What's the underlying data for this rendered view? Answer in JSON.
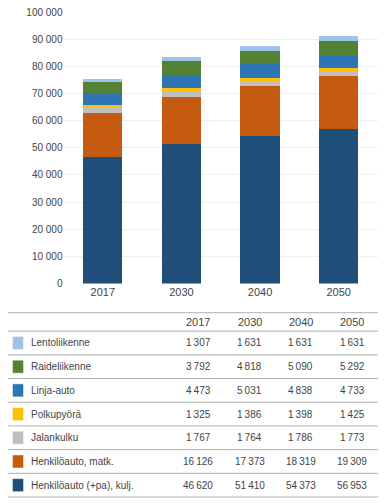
{
  "chart_data": {
    "type": "bar",
    "stacked": true,
    "categories": [
      "2017",
      "2030",
      "2040",
      "2050"
    ],
    "series": [
      {
        "name": "Henkilöauto (+pa), kulj.",
        "color": "#1F4E79",
        "values": [
          46620,
          51410,
          54373,
          56953
        ],
        "value_labels": [
          "46 620",
          "51 410",
          "54 373",
          "56 953"
        ]
      },
      {
        "name": "Henkilöauto, matk.",
        "color": "#C55A11",
        "values": [
          16126,
          17373,
          18319,
          19309
        ],
        "value_labels": [
          "16 126",
          "17 373",
          "18 319",
          "19 309"
        ]
      },
      {
        "name": "Jalankulku",
        "color": "#BFBFBF",
        "values": [
          1767,
          1764,
          1786,
          1773
        ],
        "value_labels": [
          "1 767",
          "1 764",
          "1 786",
          "1 773"
        ]
      },
      {
        "name": "Polkupyörä",
        "color": "#FFC000",
        "values": [
          1325,
          1386,
          1398,
          1425
        ],
        "value_labels": [
          "1 325",
          "1 386",
          "1 398",
          "1 425"
        ]
      },
      {
        "name": "Linja-auto",
        "color": "#2E75B6",
        "values": [
          4473,
          5031,
          4838,
          4733
        ],
        "value_labels": [
          "4 473",
          "5 031",
          "4 838",
          "4 733"
        ]
      },
      {
        "name": "Raideliikenne",
        "color": "#548235",
        "values": [
          3792,
          4818,
          5090,
          5292
        ],
        "value_labels": [
          "3 792",
          "4 818",
          "5 090",
          "5 292"
        ]
      },
      {
        "name": "Lentoliikenne",
        "color": "#9DC3E6",
        "values": [
          1307,
          1631,
          1631,
          1631
        ],
        "value_labels": [
          "1 307",
          "1 631",
          "1 631",
          "1 631"
        ]
      }
    ],
    "ylim": [
      0,
      100000
    ],
    "yticks": [
      0,
      {
        "value": 10000,
        "label": "10 000"
      },
      {
        "value": 20000,
        "label": "20 000"
      },
      {
        "value": 30000,
        "label": "30 000"
      },
      {
        "value": 40000,
        "label": "40 000"
      },
      {
        "value": 50000,
        "label": "50 000"
      },
      {
        "value": 60000,
        "label": "60 000"
      },
      {
        "value": 70000,
        "label": "70 000"
      },
      {
        "value": 80000,
        "label": "80 000"
      },
      {
        "value": 90000,
        "label": "90 000"
      },
      {
        "value": 100000,
        "label": "100 000"
      }
    ],
    "grid": true,
    "legend": "bottom"
  }
}
